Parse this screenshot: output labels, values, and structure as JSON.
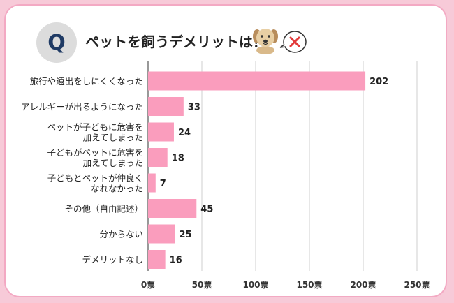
{
  "header": {
    "q_mark": "Q",
    "title": "ペットを飼うデメリットは？"
  },
  "colors": {
    "bar": "#fa9dbd",
    "grid": "#cfcfcf",
    "accent_q": "#1f3a64",
    "no_mark": "#e23a3a"
  },
  "icons": [
    "dog-icon",
    "cross-icon"
  ],
  "chart_data": {
    "type": "bar",
    "orientation": "horizontal",
    "categories": [
      [
        "旅行や遠出をしにくくなった"
      ],
      [
        "アレルギーが出るようになった"
      ],
      [
        "ペットが子どもに危害を",
        "加えてしまった"
      ],
      [
        "子どもがペットに危害を",
        "加えてしまった"
      ],
      [
        "子どもとペットが仲良く",
        "なれなかった"
      ],
      [
        "その他（自由記述）"
      ],
      [
        "分からない"
      ],
      [
        "デメリットなし"
      ]
    ],
    "values": [
      202,
      33,
      24,
      18,
      7,
      45,
      25,
      16
    ],
    "xlim": [
      0,
      250
    ],
    "xticks": [
      "0票",
      "50票",
      "100票",
      "150票",
      "200票",
      "250票"
    ],
    "grid": true
  }
}
